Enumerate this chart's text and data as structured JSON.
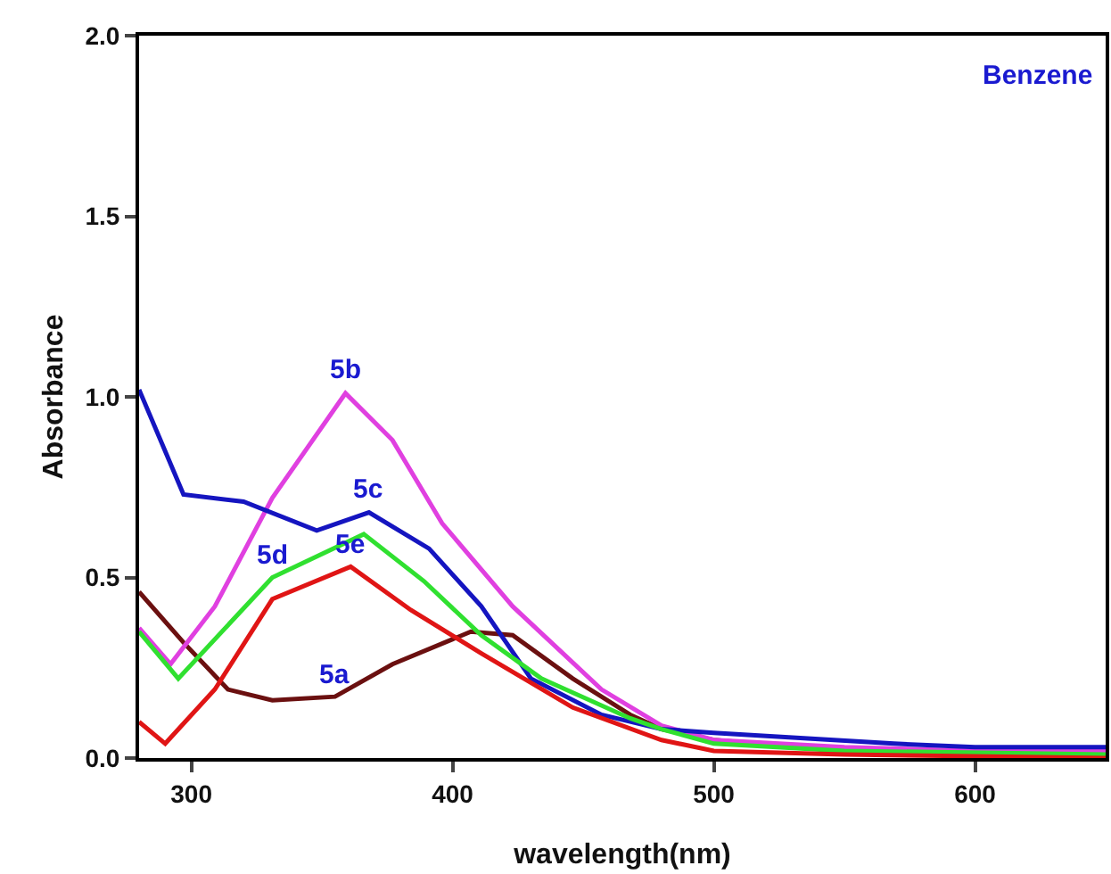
{
  "chart_data": {
    "type": "line",
    "xlabel": "wavelength(nm)",
    "ylabel": "Absorbance",
    "xlim": [
      280,
      650
    ],
    "xticks": [
      300,
      400,
      500,
      600
    ],
    "ylim": [
      0,
      2
    ],
    "yticks": [
      {
        "value": 0,
        "label": "0.0"
      },
      {
        "value": 0.5,
        "label": "0.5"
      },
      {
        "value": 1,
        "label": "1.0"
      },
      {
        "value": 1.5,
        "label": "1.5"
      },
      {
        "value": 2,
        "label": "2.0"
      }
    ],
    "grid": false,
    "marker": "none",
    "line_style": "solid",
    "series": [
      {
        "color": "#6b1010",
        "x": [
          280,
          297,
          314,
          331,
          355,
          377,
          407,
          423,
          446,
          468,
          480,
          500,
          550,
          600,
          650
        ],
        "values": [
          0.46,
          0.32,
          0.19,
          0.16,
          0.17,
          0.26,
          0.35,
          0.34,
          0.22,
          0.12,
          0.08,
          0.05,
          0.02,
          0.01,
          0.01
        ]
      },
      {
        "color": "#e040e0",
        "x": [
          280,
          292,
          309,
          331,
          359,
          377,
          396,
          423,
          457,
          480,
          500,
          550,
          600,
          650
        ],
        "values": [
          0.36,
          0.26,
          0.42,
          0.72,
          1.01,
          0.88,
          0.65,
          0.42,
          0.19,
          0.09,
          0.05,
          0.03,
          0.02,
          0.02
        ]
      },
      {
        "color": "#1515c0",
        "x": [
          280,
          297,
          320,
          348,
          368,
          391,
          411,
          430,
          457,
          480,
          500,
          569,
          600,
          650
        ],
        "values": [
          1.02,
          0.73,
          0.71,
          0.63,
          0.68,
          0.58,
          0.42,
          0.22,
          0.12,
          0.08,
          0.07,
          0.04,
          0.03,
          0.03
        ]
      },
      {
        "color": "#30e030",
        "x": [
          280,
          295,
          331,
          366,
          389,
          411,
          434,
          468,
          480,
          500,
          550,
          650
        ],
        "values": [
          0.35,
          0.22,
          0.5,
          0.62,
          0.49,
          0.34,
          0.22,
          0.11,
          0.08,
          0.04,
          0.02,
          0.01
        ]
      },
      {
        "color": "#e01515",
        "x": [
          280,
          290,
          309,
          331,
          361,
          384,
          411,
          446,
          480,
          500,
          550,
          650
        ],
        "values": [
          0.1,
          0.04,
          0.19,
          0.44,
          0.53,
          0.41,
          0.29,
          0.14,
          0.05,
          0.02,
          0.01,
          0
        ]
      }
    ],
    "annotations": [
      "Benzene",
      {
        "text": "5b",
        "x": 359,
        "y": 1.01
      },
      {
        "text": "5c",
        "x": 368,
        "y": 0.68
      },
      {
        "text": "5d",
        "x": 331,
        "y": 0.5
      },
      {
        "text": "5e",
        "x": 361,
        "y": 0.53
      },
      {
        "text": "5a",
        "x": 355,
        "y": 0.17
      }
    ]
  }
}
